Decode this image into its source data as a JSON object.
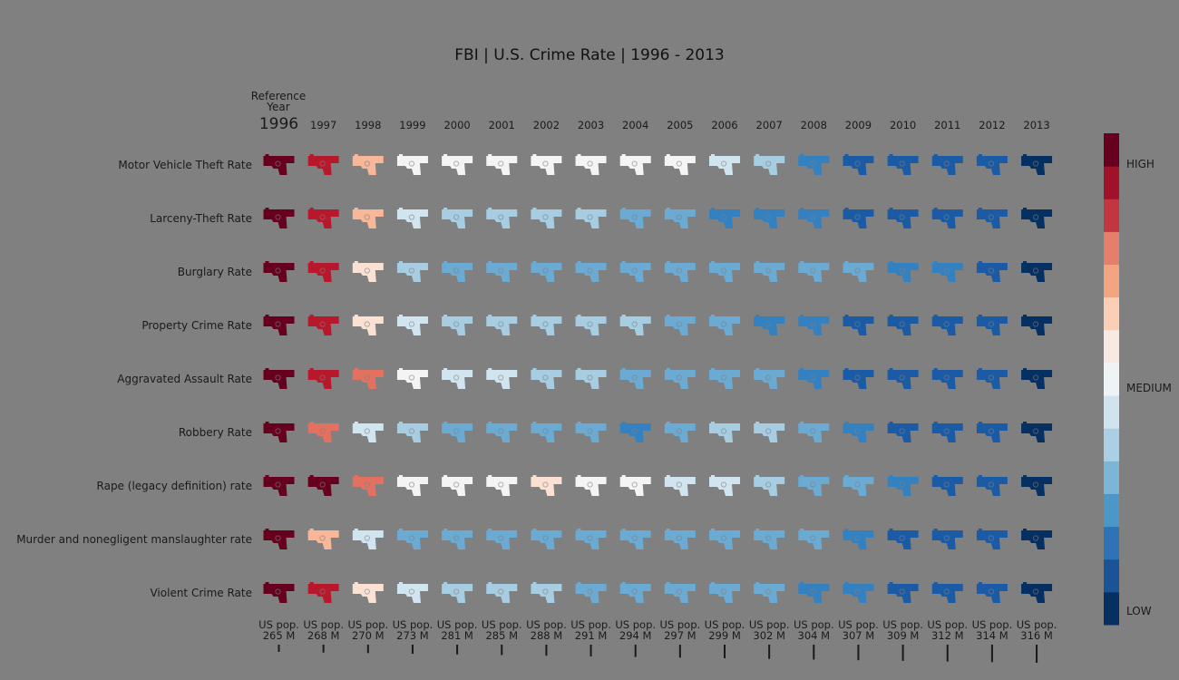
{
  "chart_data": {
    "type": "heatmap",
    "title": "FBI | U.S. Crime Rate | 1996 - 2013",
    "reference_label": [
      "Reference",
      "Year"
    ],
    "columns": [
      "1996",
      "1997",
      "1998",
      "1999",
      "2000",
      "2001",
      "2002",
      "2003",
      "2004",
      "2005",
      "2006",
      "2007",
      "2008",
      "2009",
      "2010",
      "2011",
      "2012",
      "2013"
    ],
    "population_prefix": "US pop.",
    "population": [
      "265 M",
      "268 M",
      "270 M",
      "273 M",
      "281 M",
      "285 M",
      "288 M",
      "291 M",
      "294 M",
      "297 M",
      "299 M",
      "302 M",
      "304 M",
      "307 M",
      "309 M",
      "312 M",
      "314 M",
      "316 M"
    ],
    "rows": [
      {
        "name": "Motor Vehicle Theft Rate",
        "levels": [
          11,
          10,
          8,
          6,
          6,
          6,
          6,
          6,
          6,
          6,
          5,
          4,
          2,
          1,
          1,
          1,
          1,
          0
        ]
      },
      {
        "name": "Larceny-Theft Rate",
        "levels": [
          11,
          10,
          8,
          5,
          4,
          4,
          4,
          4,
          3,
          3,
          2,
          2,
          2,
          1,
          1,
          1,
          1,
          0
        ]
      },
      {
        "name": "Burglary Rate",
        "levels": [
          11,
          10,
          7,
          4,
          3,
          3,
          3,
          3,
          3,
          3,
          3,
          3,
          3,
          3,
          2,
          2,
          1,
          0
        ]
      },
      {
        "name": "Property Crime Rate",
        "levels": [
          11,
          10,
          7,
          5,
          4,
          4,
          4,
          4,
          4,
          3,
          3,
          2,
          2,
          1,
          1,
          1,
          1,
          0
        ]
      },
      {
        "name": "Aggravated Assault Rate",
        "levels": [
          11,
          10,
          9,
          6,
          5,
          5,
          4,
          4,
          3,
          3,
          3,
          3,
          2,
          1,
          1,
          1,
          1,
          0
        ]
      },
      {
        "name": "Robbery Rate",
        "levels": [
          11,
          9,
          5,
          4,
          3,
          3,
          3,
          3,
          2,
          3,
          4,
          4,
          3,
          2,
          1,
          1,
          1,
          0
        ]
      },
      {
        "name": "Rape (legacy definition) rate",
        "levels": [
          11,
          11,
          9,
          6,
          6,
          6,
          7,
          6,
          6,
          5,
          5,
          4,
          3,
          3,
          2,
          1,
          1,
          0
        ]
      },
      {
        "name": "Murder and nonegligent manslaughter rate",
        "levels": [
          11,
          8,
          5,
          3,
          3,
          3,
          3,
          3,
          3,
          3,
          3,
          3,
          3,
          2,
          1,
          1,
          1,
          0
        ]
      },
      {
        "name": "Violent Crime Rate",
        "levels": [
          11,
          10,
          7,
          5,
          4,
          4,
          4,
          3,
          3,
          3,
          3,
          3,
          2,
          2,
          1,
          1,
          1,
          0
        ]
      }
    ],
    "color_scale": [
      "#053061",
      "#1a5496",
      "#2d73b6",
      "#4b97c8",
      "#7bb6d7",
      "#a9d0e5",
      "#d0e4ef",
      "#eef3f6",
      "#f8eae3",
      "#fbcfb6",
      "#f3a480",
      "#e37f6a",
      "#c2363f",
      "#a01229",
      "#67001f"
    ],
    "level_colors": [
      "#053061",
      "#1b5ba6",
      "#3381c0",
      "#6aaad3",
      "#a7cde3",
      "#d1e5f0",
      "#f4f4f4",
      "#fbe1d3",
      "#f7b798",
      "#e47160",
      "#b8182b",
      "#67001f"
    ],
    "legend_labels": {
      "high": "HIGH",
      "medium": "MEDIUM",
      "low": "LOW"
    },
    "legend_position": "right",
    "grid": false
  }
}
